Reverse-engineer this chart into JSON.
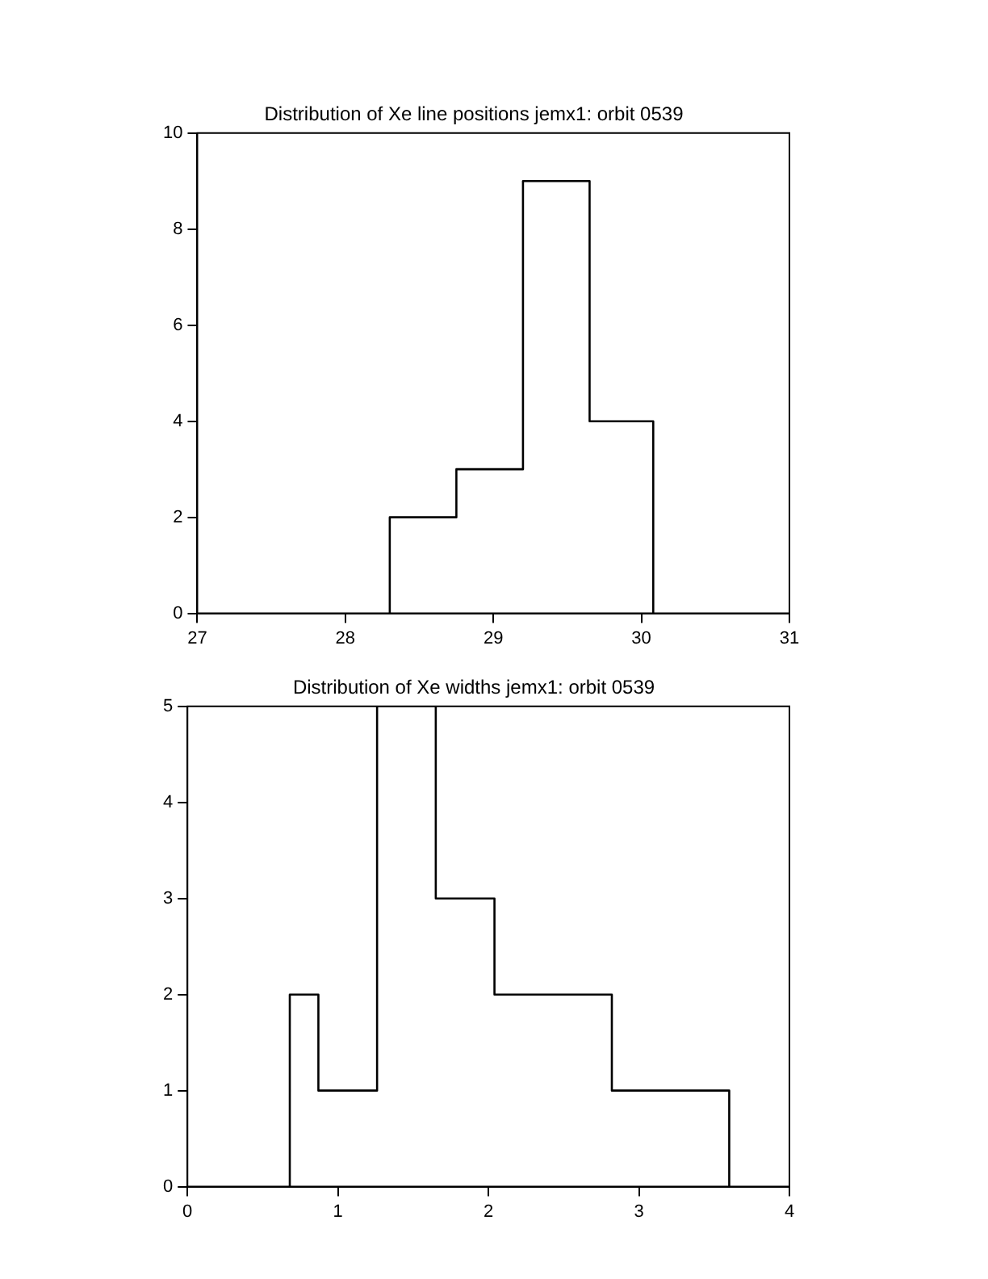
{
  "chart_data": [
    {
      "type": "histogram",
      "title": "Distribution of Xe line positions jemx1: orbit 0539",
      "bins": [
        28.3,
        28.75,
        29.2,
        29.65,
        30.08
      ],
      "values": [
        2,
        3,
        9,
        4
      ],
      "color": "#000000",
      "xlim": [
        27,
        31
      ],
      "xticks": [
        27,
        28,
        29,
        30,
        31
      ],
      "ylim": [
        0,
        10
      ],
      "yticks": [
        0,
        2,
        4,
        6,
        8,
        10
      ],
      "grid": false,
      "legend": false
    },
    {
      "type": "histogram",
      "title": "Distribution of Xe widths jemx1: orbit 0539",
      "bins": [
        0.68,
        0.87,
        1.26,
        1.65,
        2.04,
        2.82,
        3.6
      ],
      "values": [
        2,
        1,
        5,
        3,
        2,
        1
      ],
      "color": "#000000",
      "xlim": [
        0,
        4
      ],
      "xticks": [
        0,
        1,
        2,
        3,
        4
      ],
      "ylim": [
        0,
        5
      ],
      "yticks": [
        0,
        1,
        2,
        3,
        4,
        5
      ],
      "grid": false,
      "legend": false
    }
  ]
}
